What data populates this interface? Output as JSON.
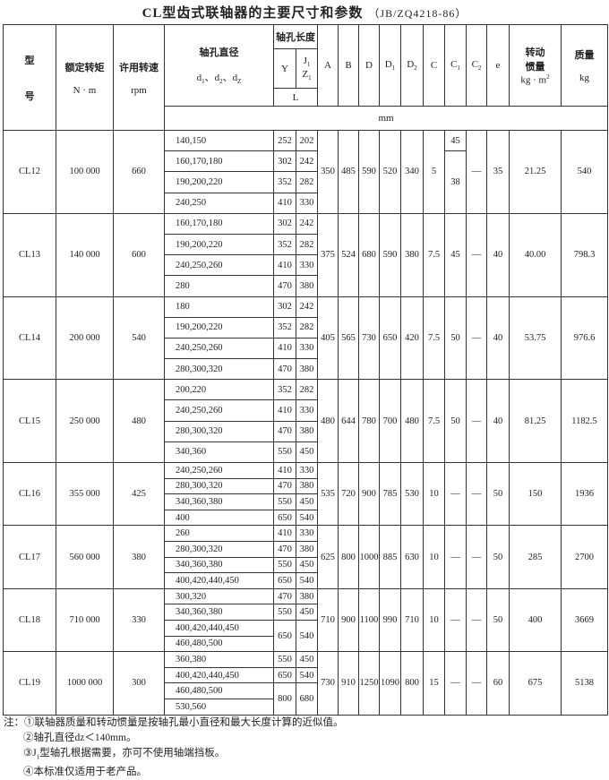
{
  "title": "CL型齿式联轴器的主要尺寸和参数",
  "standard": "（JB/ZQ4218-86）",
  "header": {
    "model": [
      "型",
      "号"
    ],
    "torque": [
      "额定转矩",
      "N · m"
    ],
    "speed": [
      "许用转速",
      "rpm"
    ],
    "bore": {
      "title": "轴孔直径",
      "separator": "、",
      "symbols": [
        {
          "base": "d",
          "sub": "1"
        },
        {
          "base": "d",
          "sub": "2"
        },
        {
          "base": "d",
          "sub": "Z"
        }
      ]
    },
    "length": {
      "title": "轴孔长度",
      "Y": "Y",
      "J": {
        "base": "J",
        "sub": "1"
      },
      "Z": {
        "base": "Z",
        "sub": "1"
      },
      "L": "L"
    },
    "dims": [
      "A",
      "B",
      "D",
      {
        "base": "D",
        "sub": "1"
      },
      {
        "base": "D",
        "sub": "2"
      },
      "C",
      {
        "base": "C",
        "sub": "1"
      },
      {
        "base": "C",
        "sub": "2"
      },
      "e"
    ],
    "inertia": {
      "lines": [
        "转动",
        "惯量"
      ],
      "unit": {
        "base": "kg · m",
        "sup": "2"
      }
    },
    "mass": [
      "质量",
      "kg"
    ],
    "unit": "mm"
  },
  "groups": [
    {
      "model": "CL12",
      "torque": "100 000",
      "speed": "660",
      "lengths": [
        {
          "bores": [
            "140,150"
          ],
          "Y": "252",
          "J": "202"
        },
        {
          "bores": [
            "160,170,180"
          ],
          "Y": "302",
          "J": "242"
        },
        {
          "bores": [
            "190,200,220"
          ],
          "Y": "352",
          "J": "282"
        },
        {
          "bores": [
            "240,250"
          ],
          "Y": "410",
          "J": "330"
        }
      ],
      "A": "350",
      "B": "485",
      "D": "590",
      "D1": "520",
      "D2": "340",
      "C": "5",
      "C1": [
        "45",
        "38"
      ],
      "C2": "—",
      "e": "35",
      "inertia": "21.25",
      "mass": "540"
    },
    {
      "model": "CL13",
      "torque": "140 000",
      "speed": "600",
      "lengths": [
        {
          "bores": [
            "160,170,180"
          ],
          "Y": "302",
          "J": "242"
        },
        {
          "bores": [
            "190,200,220"
          ],
          "Y": "352",
          "J": "282"
        },
        {
          "bores": [
            "240,250,260"
          ],
          "Y": "410",
          "J": "330"
        },
        {
          "bores": [
            "280"
          ],
          "Y": "470",
          "J": "380"
        }
      ],
      "A": "375",
      "B": "524",
      "D": "680",
      "D1": "590",
      "D2": "380",
      "C": "7.5",
      "C1": "45",
      "C2": "—",
      "e": "40",
      "inertia": "40.00",
      "mass": "798.3"
    },
    {
      "model": "CL14",
      "torque": "200 000",
      "speed": "540",
      "lengths": [
        {
          "bores": [
            "180"
          ],
          "Y": "302",
          "J": "242"
        },
        {
          "bores": [
            "190,200,220"
          ],
          "Y": "352",
          "J": "282"
        },
        {
          "bores": [
            "240,250,260"
          ],
          "Y": "410",
          "J": "330"
        },
        {
          "bores": [
            "280,300,320"
          ],
          "Y": "470",
          "J": "380"
        }
      ],
      "A": "405",
      "B": "565",
      "D": "730",
      "D1": "650",
      "D2": "420",
      "C": "7.5",
      "C1": "50",
      "C2": "—",
      "e": "40",
      "inertia": "53.75",
      "mass": "976.6"
    },
    {
      "model": "CL15",
      "torque": "250 000",
      "speed": "480",
      "lengths": [
        {
          "bores": [
            "200,220"
          ],
          "Y": "352",
          "J": "282"
        },
        {
          "bores": [
            "240,250,260"
          ],
          "Y": "410",
          "J": "330"
        },
        {
          "bores": [
            "280,300,320"
          ],
          "Y": "470",
          "J": "380"
        },
        {
          "bores": [
            "340,360"
          ],
          "Y": "550",
          "J": "450"
        }
      ],
      "A": "480",
      "B": "644",
      "D": "780",
      "D1": "700",
      "D2": "480",
      "C": "7.5",
      "C1": "50",
      "C2": "—",
      "e": "40",
      "inertia": "81.25",
      "mass": "1182.5"
    },
    {
      "model": "CL16",
      "torque": "355 000",
      "speed": "425",
      "lengths": [
        {
          "bores": [
            "240,250,260"
          ],
          "Y": "410",
          "J": "330"
        },
        {
          "bores": [
            "280,300,320"
          ],
          "Y": "470",
          "J": "380"
        },
        {
          "bores": [
            "340,360,380"
          ],
          "Y": "550",
          "J": "450"
        },
        {
          "bores": [
            "400"
          ],
          "Y": "650",
          "J": "540"
        }
      ],
      "A": "535",
      "B": "720",
      "D": "900",
      "D1": "785",
      "D2": "530",
      "C": "10",
      "C1": "—",
      "C2": "—",
      "e": "50",
      "inertia": "150",
      "mass": "1936"
    },
    {
      "model": "CL17",
      "torque": "560 000",
      "speed": "380",
      "lengths": [
        {
          "bores": [
            "260"
          ],
          "Y": "410",
          "J": "330"
        },
        {
          "bores": [
            "280,300,320"
          ],
          "Y": "470",
          "J": "380"
        },
        {
          "bores": [
            "340,360,380"
          ],
          "Y": "550",
          "J": "450"
        },
        {
          "bores": [
            "400,420,440,450"
          ],
          "Y": "650",
          "J": "540"
        }
      ],
      "A": "625",
      "B": "800",
      "D": "1000",
      "D1": "885",
      "D2": "630",
      "C": "10",
      "C1": "—",
      "C2": "—",
      "e": "50",
      "inertia": "285",
      "mass": "2700"
    },
    {
      "model": "CL18",
      "torque": "710 000",
      "speed": "330",
      "lengths": [
        {
          "bores": [
            "300,320"
          ],
          "Y": "470",
          "J": "380"
        },
        {
          "bores": [
            "340,360,380"
          ],
          "Y": "550",
          "J": "450"
        },
        {
          "bores": [
            "400,420,440,450",
            "460,480,500"
          ],
          "Y": "650",
          "J": "540"
        }
      ],
      "A": "710",
      "B": "900",
      "D": "1100",
      "D1": "990",
      "D2": "710",
      "C": "10",
      "C1": "—",
      "C2": "—",
      "e": "50",
      "inertia": "400",
      "mass": "3669"
    },
    {
      "model": "CL19",
      "torque": "1000 000",
      "speed": "300",
      "lengths": [
        {
          "bores": [
            "360,380"
          ],
          "Y": "550",
          "J": "450"
        },
        {
          "bores": [
            "400,420,440,450"
          ],
          "Y": "650",
          "J": "540"
        },
        {
          "bores": [
            "460,480,500",
            "530,560"
          ],
          "Y": "800",
          "J": "680"
        }
      ],
      "A": "730",
      "B": "910",
      "D": "1250",
      "D1": "1090",
      "D2": "800",
      "C": "15",
      "C1": "—",
      "C2": "—",
      "e": "60",
      "inertia": "675",
      "mass": "5138"
    }
  ],
  "notes": {
    "prefix": "注：",
    "items": [
      "①联轴器质量和转动惯量是按轴孔最小直径和最大长度计算的近似值。",
      "②轴孔直径dz＜140mm。",
      {
        "before": "③J",
        "sub": "1",
        "after": "型轴孔根据需要，亦可不使用轴端挡板。"
      },
      "④本标准仅适用于老产品。"
    ]
  }
}
